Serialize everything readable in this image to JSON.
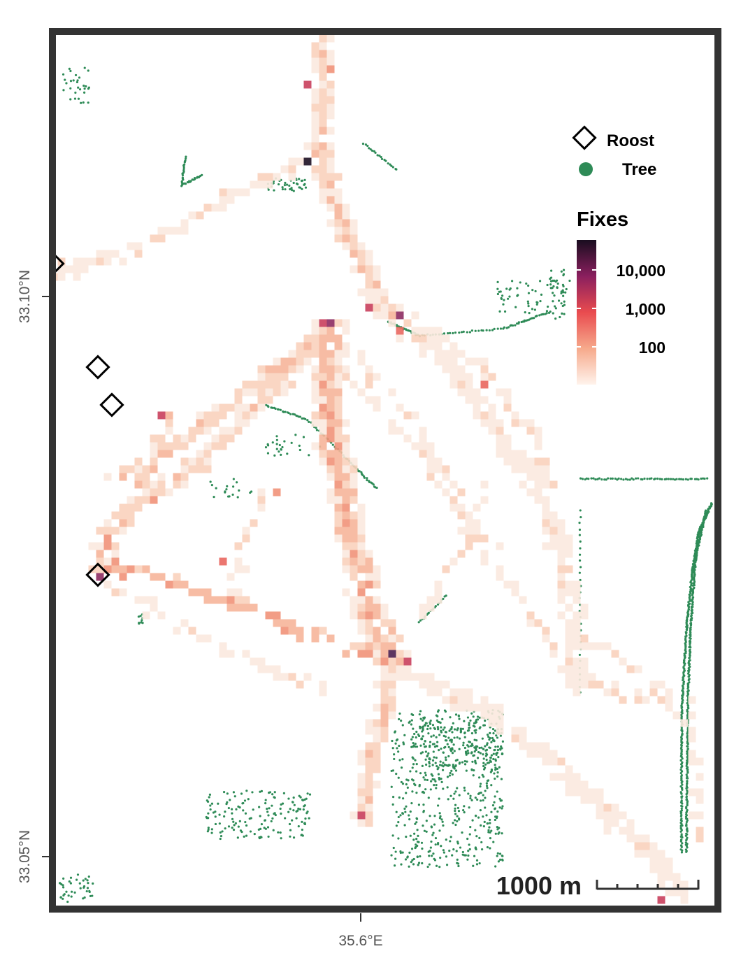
{
  "map": {
    "axes": {
      "x_ticks": [
        "35.6°E"
      ],
      "y_ticks": [
        "33.10°N",
        "33.05°N"
      ]
    },
    "legend": {
      "roost_label": "Roost",
      "tree_label": "Tree",
      "fixes_title": "Fixes",
      "fixes_ticks": [
        "10,000",
        "1,000",
        "100"
      ],
      "colors": {
        "roost": "#000000",
        "tree": "#2e8b57",
        "scale_low": "#fbe6d9",
        "scale_high": "#190d1f"
      }
    },
    "scale_bar": {
      "label": "1000 m"
    }
  }
}
